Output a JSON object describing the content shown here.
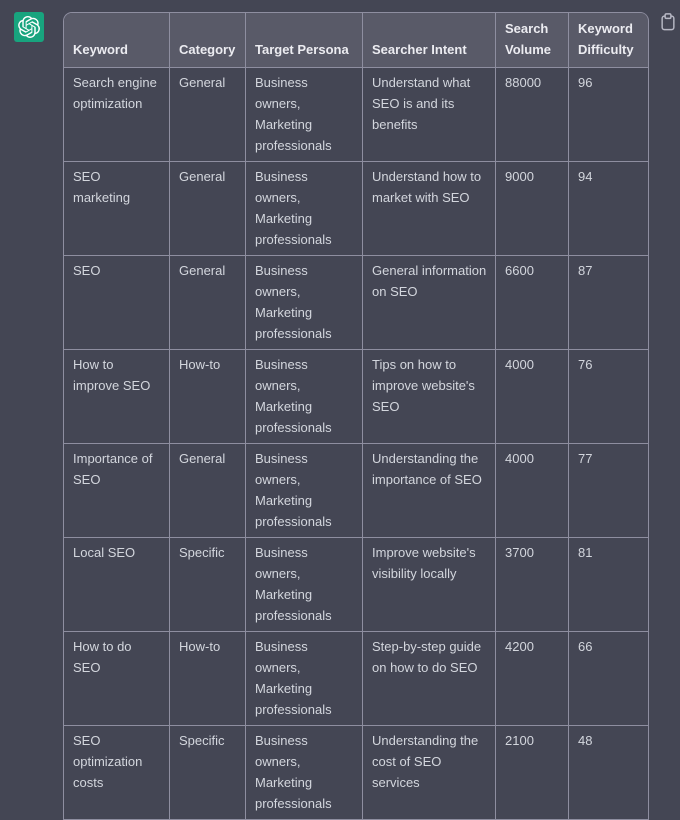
{
  "message": {
    "avatar_icon": "openai-logo-icon",
    "copy_button_icon": "clipboard-icon"
  },
  "colors": {
    "background": "#444654",
    "table_header_bg": "#595a68",
    "table_border": "#8e8ea0",
    "header_text": "#ececf1",
    "body_text": "#d3d6dd",
    "avatar_green": "#18a47e",
    "icon_gray": "#b8b9c5"
  },
  "table": {
    "columns": [
      "Keyword",
      "Category",
      "Target Persona",
      "Searcher Intent",
      "Search Volume",
      "Keyword Difficulty"
    ],
    "rows": [
      [
        "Search engine optimization",
        "General",
        "Business owners, Marketing professionals",
        "Understand what SEO is and its benefits",
        "88000",
        "96"
      ],
      [
        "SEO marketing",
        "General",
        "Business owners, Marketing professionals",
        "Understand how to market with SEO",
        "9000",
        "94"
      ],
      [
        "SEO",
        "General",
        "Business owners, Marketing professionals",
        "General information on SEO",
        "6600",
        "87"
      ],
      [
        "How to improve SEO",
        "How-to",
        "Business owners, Marketing professionals",
        "Tips on how to improve website's SEO",
        "4000",
        "76"
      ],
      [
        "Importance of SEO",
        "General",
        "Business owners, Marketing professionals",
        "Understanding the importance of SEO",
        "4000",
        "77"
      ],
      [
        "Local SEO",
        "Specific",
        "Business owners, Marketing professionals",
        "Improve website's visibility locally",
        "3700",
        "81"
      ],
      [
        "How to do SEO",
        "How-to",
        "Business owners, Marketing professionals",
        "Step-by-step guide on how to do SEO",
        "4200",
        "66"
      ],
      [
        "SEO optimization costs",
        "Specific",
        "Business owners, Marketing professionals",
        "Understanding the cost of SEO services",
        "2100",
        "48"
      ]
    ]
  }
}
